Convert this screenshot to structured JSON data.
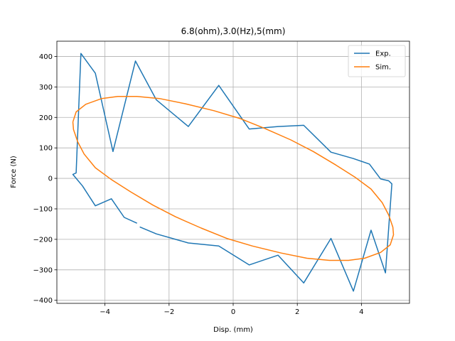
{
  "chart_data": {
    "type": "line",
    "title": "6.8(ohm),3.0(Hz),5(mm)",
    "xlabel": "Disp. (mm)",
    "ylabel": "Force (N)",
    "xlim": [
      -5.5,
      5.5
    ],
    "ylim": [
      -410,
      450
    ],
    "xticks": [
      -4,
      -2,
      0,
      2,
      4
    ],
    "yticks": [
      -400,
      -300,
      -200,
      -100,
      0,
      100,
      200,
      300,
      400
    ],
    "grid": true,
    "legend_position": "top-right",
    "series": [
      {
        "name": "Exp.",
        "color": "#1f77b4",
        "points": [
          [
            -3.0,
            -147
          ],
          [
            -3.4,
            -128
          ],
          [
            -3.8,
            -67
          ],
          [
            -4.3,
            -90
          ],
          [
            -4.7,
            -25
          ],
          [
            -5.0,
            13
          ],
          [
            -4.9,
            18
          ],
          [
            -4.75,
            410
          ],
          [
            -4.3,
            345
          ],
          [
            -3.75,
            88
          ],
          [
            -3.05,
            385
          ],
          [
            -2.4,
            258
          ],
          [
            -1.4,
            170
          ],
          [
            -0.45,
            305
          ],
          [
            0.5,
            162
          ],
          [
            1.4,
            170
          ],
          [
            2.2,
            174
          ],
          [
            3.05,
            86
          ],
          [
            3.75,
            65
          ],
          [
            4.25,
            47
          ],
          [
            4.6,
            -2
          ],
          [
            4.85,
            -8
          ],
          [
            4.95,
            -18
          ],
          [
            4.75,
            -310
          ],
          [
            4.3,
            -170
          ],
          [
            3.75,
            -370
          ],
          [
            3.05,
            -197
          ],
          [
            2.2,
            -343
          ],
          [
            1.4,
            -252
          ],
          [
            0.5,
            -284
          ],
          [
            -0.45,
            -222
          ],
          [
            -1.4,
            -212
          ],
          [
            -2.4,
            -182
          ],
          [
            -2.9,
            -160
          ],
          [
            -2.4,
            -182
          ]
        ]
      },
      {
        "name": "Sim.",
        "color": "#ff7f0e",
        "points": [
          [
            -5.0,
            185
          ],
          [
            -4.9,
            218
          ],
          [
            -4.6,
            243
          ],
          [
            -4.1,
            262
          ],
          [
            -3.6,
            269
          ],
          [
            -3.0,
            269
          ],
          [
            -2.3,
            262
          ],
          [
            -1.5,
            245
          ],
          [
            -0.6,
            222
          ],
          [
            0.2,
            197
          ],
          [
            1.0,
            163
          ],
          [
            1.8,
            126
          ],
          [
            2.5,
            88
          ],
          [
            3.2,
            44
          ],
          [
            3.8,
            4
          ],
          [
            4.3,
            -35
          ],
          [
            4.65,
            -80
          ],
          [
            4.85,
            -120
          ],
          [
            4.98,
            -160
          ],
          [
            5.0,
            -185
          ],
          [
            4.9,
            -218
          ],
          [
            4.6,
            -243
          ],
          [
            4.1,
            -262
          ],
          [
            3.6,
            -269
          ],
          [
            3.0,
            -269
          ],
          [
            2.3,
            -262
          ],
          [
            1.5,
            -245
          ],
          [
            0.6,
            -222
          ],
          [
            -0.2,
            -197
          ],
          [
            -1.0,
            -163
          ],
          [
            -1.8,
            -126
          ],
          [
            -2.5,
            -88
          ],
          [
            -3.2,
            -44
          ],
          [
            -3.8,
            -4
          ],
          [
            -4.3,
            35
          ],
          [
            -4.65,
            80
          ],
          [
            -4.85,
            120
          ],
          [
            -4.98,
            160
          ],
          [
            -5.0,
            185
          ]
        ]
      }
    ]
  }
}
